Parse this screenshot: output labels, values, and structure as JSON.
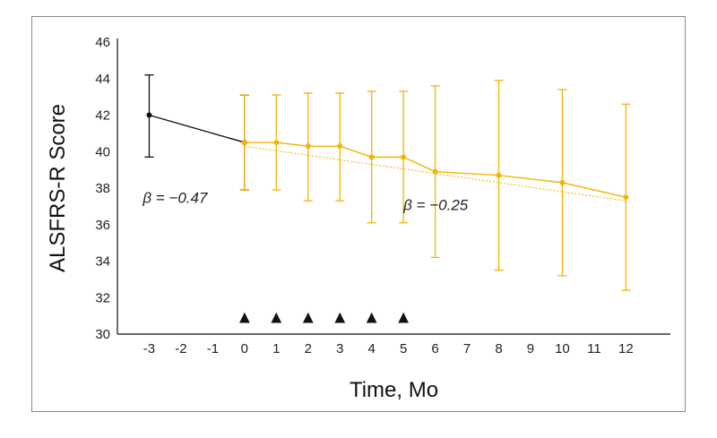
{
  "chart_data": {
    "type": "line",
    "title": "",
    "xlabel": "Time, Mo",
    "ylabel": "ALSFRS-R Score",
    "ylim": [
      30,
      46
    ],
    "yticks": [
      30,
      32,
      34,
      36,
      38,
      40,
      42,
      44,
      46
    ],
    "xticks": [
      -3,
      -2,
      -1,
      0,
      1,
      2,
      3,
      4,
      5,
      6,
      7,
      8,
      9,
      10,
      11,
      12
    ],
    "grid": false,
    "series": [
      {
        "color": "#111111",
        "points": [
          {
            "x": -3,
            "y": 42.0,
            "err_low": 39.7,
            "err_high": 44.2
          },
          {
            "x": 0,
            "y": 40.5,
            "err_low": 37.9,
            "err_high": 43.1
          }
        ]
      },
      {
        "color": "#f4b400",
        "points": [
          {
            "x": 0,
            "y": 40.5,
            "err_low": 37.9,
            "err_high": 43.1
          },
          {
            "x": 1,
            "y": 40.5,
            "err_low": 37.9,
            "err_high": 43.1
          },
          {
            "x": 2,
            "y": 40.3,
            "err_low": 37.3,
            "err_high": 43.2
          },
          {
            "x": 3,
            "y": 40.3,
            "err_low": 37.3,
            "err_high": 43.2
          },
          {
            "x": 4,
            "y": 39.7,
            "err_low": 36.1,
            "err_high": 43.3
          },
          {
            "x": 5,
            "y": 39.7,
            "err_low": 36.1,
            "err_high": 43.3
          },
          {
            "x": 6,
            "y": 38.9,
            "err_low": 34.2,
            "err_high": 43.6
          },
          {
            "x": 8,
            "y": 38.7,
            "err_low": 33.5,
            "err_high": 43.9
          },
          {
            "x": 10,
            "y": 38.3,
            "err_low": 33.2,
            "err_high": 43.4
          },
          {
            "x": 12,
            "y": 37.5,
            "err_low": 32.4,
            "err_high": 42.6
          }
        ]
      }
    ],
    "trendline": {
      "color": "#f4b400",
      "x": [
        0,
        12
      ],
      "y": [
        40.3,
        37.3
      ]
    },
    "dose_markers": {
      "symbol": "▲",
      "x": [
        0,
        1,
        2,
        3,
        4,
        5
      ],
      "y": 31.0
    },
    "annotations": [
      {
        "text": "β = −0.47",
        "x": -3.2,
        "y": 37.2
      },
      {
        "text": "β = −0.25",
        "x": 5.0,
        "y": 36.8
      }
    ]
  }
}
